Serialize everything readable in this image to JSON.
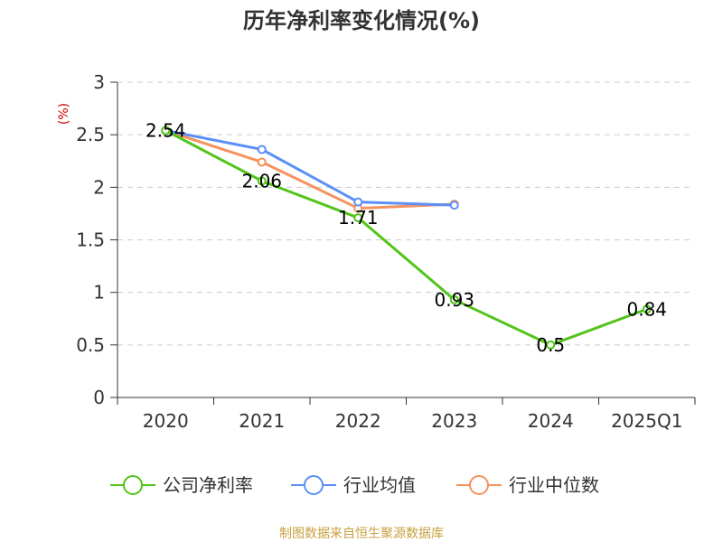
{
  "chart_data": {
    "type": "line",
    "title": "历年净利率变化情况(%)",
    "ylabel": "(%)",
    "categories": [
      "2020",
      "2021",
      "2022",
      "2023",
      "2024",
      "2025Q1"
    ],
    "y_ticks": [
      "0",
      "0.5",
      "1",
      "1.5",
      "2",
      "2.5",
      "3"
    ],
    "ylim": [
      0,
      3
    ],
    "grid": true,
    "series": [
      {
        "name": "公司净利率",
        "color": "#52c41a",
        "values": [
          2.54,
          2.06,
          1.71,
          0.93,
          0.5,
          0.84
        ],
        "labels": [
          "2.54",
          "2.06",
          "1.71",
          "0.93",
          "0.5",
          "0.84"
        ]
      },
      {
        "name": "行业均值",
        "color": "#5b8ff9",
        "values": [
          2.54,
          2.36,
          1.86,
          1.83,
          null,
          null
        ]
      },
      {
        "name": "行业中位数",
        "color": "#f6925e",
        "values": [
          2.54,
          2.24,
          1.8,
          1.84,
          null,
          null
        ]
      }
    ],
    "source": "制图数据来自恒生聚源数据库",
    "colors": {
      "unit": "#cc0000",
      "source": "#c8a040",
      "axis": "#333333",
      "grid": "#cccccc"
    }
  }
}
